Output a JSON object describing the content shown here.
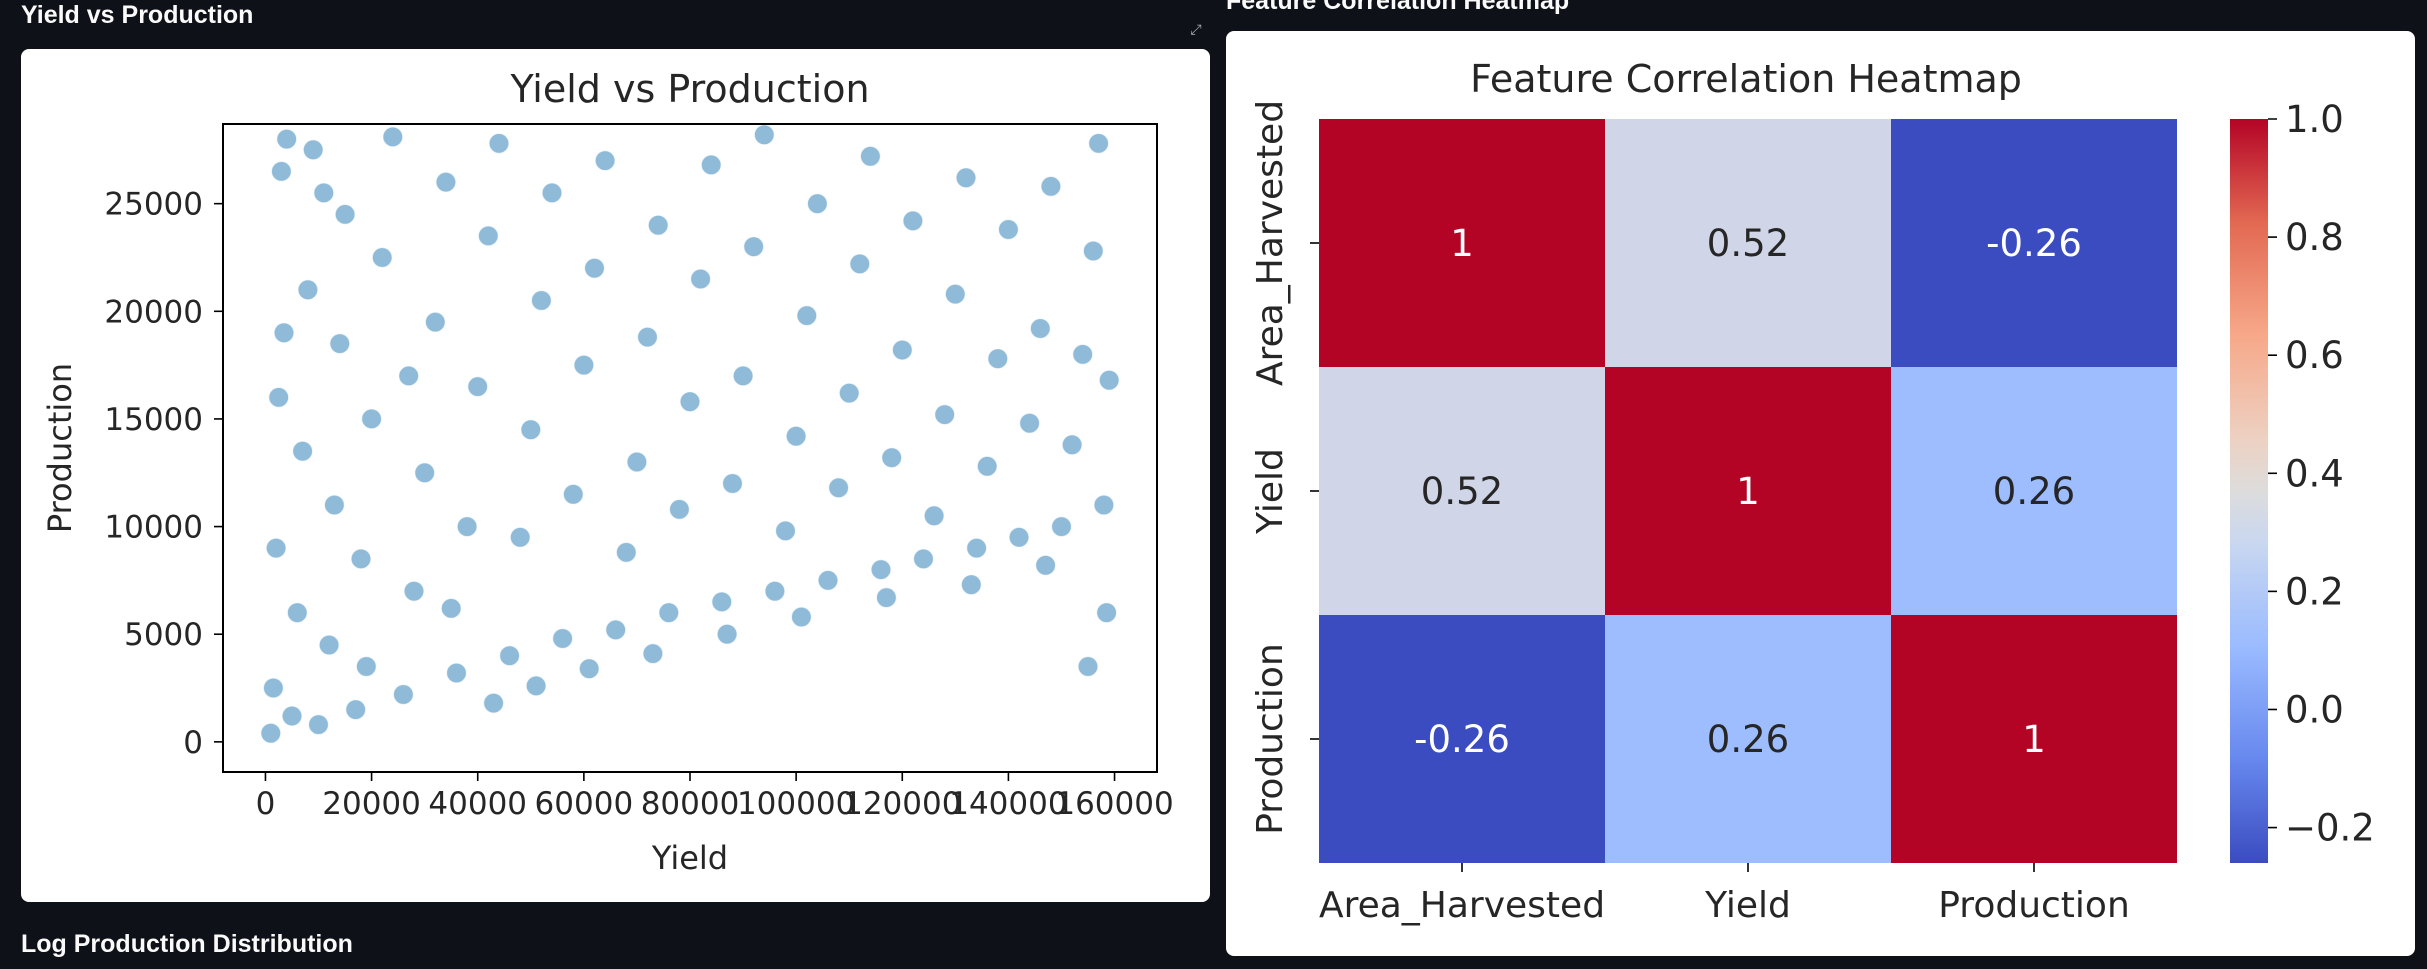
{
  "page": {
    "left_section_title": "Yield vs Production",
    "right_section_title": "Feature Correlation Heatmap",
    "bottom_section_title": "Log Production Distribution",
    "expand_icon": "expand-icon"
  },
  "chart_data": [
    {
      "type": "scatter",
      "title": "Yield vs Production",
      "xlabel": "Yield",
      "ylabel": "Production",
      "xlim": [
        -8000,
        168000
      ],
      "ylim": [
        -1400,
        28700
      ],
      "xticks": [
        0,
        20000,
        40000,
        60000,
        80000,
        100000,
        120000,
        140000,
        160000
      ],
      "xtick_labels": [
        "0",
        "20000",
        "40000",
        "60000",
        "80000",
        "100000",
        "120000",
        "140000",
        "160000"
      ],
      "yticks": [
        0,
        5000,
        10000,
        15000,
        20000,
        25000
      ],
      "ytick_labels": [
        "0",
        "5000",
        "10000",
        "15000",
        "20000",
        "25000"
      ],
      "color": "#1f77b4",
      "marker_alpha": 0.5,
      "grid": false,
      "points": [
        [
          1000,
          400
        ],
        [
          1500,
          2500
        ],
        [
          2000,
          9000
        ],
        [
          2500,
          16000
        ],
        [
          3000,
          26500
        ],
        [
          4000,
          28000
        ],
        [
          5000,
          1200
        ],
        [
          6000,
          6000
        ],
        [
          7000,
          13500
        ],
        [
          8000,
          21000
        ],
        [
          9000,
          27500
        ],
        [
          10000,
          800
        ],
        [
          12000,
          4500
        ],
        [
          13000,
          11000
        ],
        [
          14000,
          18500
        ],
        [
          15000,
          24500
        ],
        [
          17000,
          1500
        ],
        [
          18000,
          8500
        ],
        [
          20000,
          15000
        ],
        [
          22000,
          22500
        ],
        [
          24000,
          28100
        ],
        [
          26000,
          2200
        ],
        [
          28000,
          7000
        ],
        [
          30000,
          12500
        ],
        [
          32000,
          19500
        ],
        [
          34000,
          26000
        ],
        [
          36000,
          3200
        ],
        [
          38000,
          10000
        ],
        [
          40000,
          16500
        ],
        [
          42000,
          23500
        ],
        [
          44000,
          27800
        ],
        [
          46000,
          4000
        ],
        [
          48000,
          9500
        ],
        [
          50000,
          14500
        ],
        [
          52000,
          20500
        ],
        [
          54000,
          25500
        ],
        [
          56000,
          4800
        ],
        [
          58000,
          11500
        ],
        [
          60000,
          17500
        ],
        [
          62000,
          22000
        ],
        [
          64000,
          27000
        ],
        [
          66000,
          5200
        ],
        [
          68000,
          8800
        ],
        [
          70000,
          13000
        ],
        [
          72000,
          18800
        ],
        [
          74000,
          24000
        ],
        [
          76000,
          6000
        ],
        [
          78000,
          10800
        ],
        [
          80000,
          15800
        ],
        [
          82000,
          21500
        ],
        [
          84000,
          26800
        ],
        [
          86000,
          6500
        ],
        [
          88000,
          12000
        ],
        [
          90000,
          17000
        ],
        [
          92000,
          23000
        ],
        [
          94000,
          28200
        ],
        [
          96000,
          7000
        ],
        [
          98000,
          9800
        ],
        [
          100000,
          14200
        ],
        [
          102000,
          19800
        ],
        [
          104000,
          25000
        ],
        [
          106000,
          7500
        ],
        [
          108000,
          11800
        ],
        [
          110000,
          16200
        ],
        [
          112000,
          22200
        ],
        [
          114000,
          27200
        ],
        [
          116000,
          8000
        ],
        [
          118000,
          13200
        ],
        [
          120000,
          18200
        ],
        [
          122000,
          24200
        ],
        [
          124000,
          8500
        ],
        [
          126000,
          10500
        ],
        [
          128000,
          15200
        ],
        [
          130000,
          20800
        ],
        [
          132000,
          26200
        ],
        [
          134000,
          9000
        ],
        [
          136000,
          12800
        ],
        [
          138000,
          17800
        ],
        [
          140000,
          23800
        ],
        [
          142000,
          9500
        ],
        [
          144000,
          14800
        ],
        [
          146000,
          19200
        ],
        [
          148000,
          25800
        ],
        [
          150000,
          10000
        ],
        [
          152000,
          13800
        ],
        [
          154000,
          18000
        ],
        [
          156000,
          22800
        ],
        [
          157000,
          27800
        ],
        [
          158000,
          11000
        ],
        [
          159000,
          16800
        ],
        [
          3500,
          19000
        ],
        [
          11000,
          25500
        ],
        [
          19000,
          3500
        ],
        [
          27000,
          17000
        ],
        [
          35000,
          6200
        ],
        [
          43000,
          1800
        ],
        [
          51000,
          2600
        ],
        [
          61000,
          3400
        ],
        [
          73000,
          4100
        ],
        [
          87000,
          5000
        ],
        [
          101000,
          5800
        ],
        [
          117000,
          6700
        ],
        [
          133000,
          7300
        ],
        [
          147000,
          8200
        ],
        [
          155000,
          3500
        ],
        [
          158500,
          6000
        ]
      ]
    },
    {
      "type": "heatmap",
      "title": "Feature Correlation Heatmap",
      "row_labels": [
        "Area_Harvested",
        "Yield",
        "Production"
      ],
      "col_labels": [
        "Area_Harvested",
        "Yield",
        "Production"
      ],
      "values": [
        [
          1,
          0.52,
          -0.26
        ],
        [
          0.52,
          1,
          0.26
        ],
        [
          -0.26,
          0.26,
          1
        ]
      ],
      "annotations": [
        [
          "1",
          "0.52",
          "-0.26"
        ],
        [
          "0.52",
          "1",
          "0.26"
        ],
        [
          "-0.26",
          "0.26",
          "1"
        ]
      ],
      "colormap": "coolwarm",
      "colorbar_range": [
        -0.26,
        1
      ],
      "colorbar_ticks": [
        -0.2,
        0,
        0.2,
        0.4,
        0.6,
        0.8,
        1.0
      ],
      "colorbar_tick_labels": [
        "−0.2",
        "0.0",
        "0.2",
        "0.4",
        "0.6",
        "0.8",
        "1.0"
      ]
    }
  ]
}
